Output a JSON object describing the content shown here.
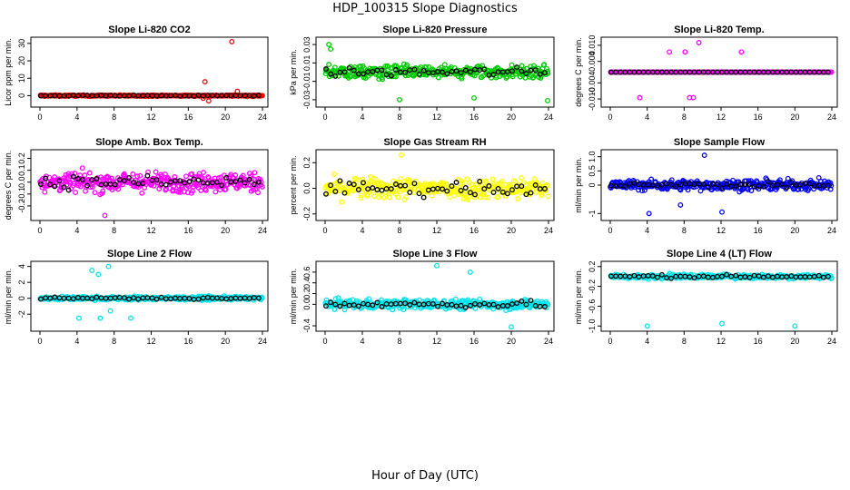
{
  "figure": {
    "title": "HDP_100315  Slope Diagnostics",
    "xlabel": "Hour of Day (UTC)"
  },
  "chart_data": [
    {
      "type": "scatter",
      "title": "Slope Li-820 CO2",
      "ylabel": "Licor ppm per min.",
      "color": "#ff0000",
      "xlim": [
        0,
        24
      ],
      "ylim": [
        -5,
        32
      ],
      "xticks": [
        "0",
        "4",
        "8",
        "12",
        "16",
        "20",
        "24"
      ],
      "yticks": [
        {
          "v": 0,
          "t": "0"
        },
        {
          "v": 10,
          "t": "10"
        },
        {
          "v": 20,
          "t": "20"
        },
        {
          "v": 30,
          "t": "30"
        }
      ],
      "spread": 0.4,
      "extremes": [
        [
          20.7,
          31
        ],
        [
          17.8,
          8
        ],
        [
          21.3,
          2.5
        ],
        [
          18.2,
          -3
        ],
        [
          17.6,
          -1.5
        ]
      ]
    },
    {
      "type": "scatter",
      "title": "Slope Li-820 Pressure",
      "ylabel": "kPa per min.",
      "color": "#00cc00",
      "xlim": [
        0,
        24
      ],
      "ylim": [
        -0.035,
        0.035
      ],
      "xticks": [
        "0",
        "4",
        "8",
        "12",
        "16",
        "20",
        "24"
      ],
      "yticks": [
        {
          "v": -0.03,
          "t": "-0.03"
        },
        {
          "v": -0.01,
          "t": "-0.01"
        },
        {
          "v": 0.01,
          "t": "0.01"
        },
        {
          "v": 0.03,
          "t": "0.03"
        }
      ],
      "spread": 0.008,
      "extremes": [
        [
          0.4,
          0.03
        ],
        [
          0.6,
          0.025
        ],
        [
          8,
          -0.03
        ],
        [
          16,
          -0.028
        ],
        [
          23.9,
          -0.031
        ]
      ]
    },
    {
      "type": "scatter",
      "title": "Slope Li-820 Temp.",
      "ylabel": "degrees C per min.",
      "color": "#ff00ff",
      "xlim": [
        0,
        24
      ],
      "ylim": [
        -0.012,
        0.012
      ],
      "xticks": [
        "0",
        "4",
        "8",
        "12",
        "16",
        "20",
        "24"
      ],
      "yticks": [
        {
          "v": -0.01,
          "t": "-0.010"
        },
        {
          "v": -0.004,
          "t": "-0.004"
        },
        {
          "v": 0.004,
          "t": "0.004"
        },
        {
          "v": 0.01,
          "t": "0.010"
        }
      ],
      "spread": 0,
      "extremes": [
        [
          9.6,
          0.011
        ],
        [
          6.4,
          0.0075
        ],
        [
          8.1,
          0.0075
        ],
        [
          14.2,
          0.0075
        ],
        [
          3.2,
          -0.0095
        ],
        [
          8.6,
          -0.0095
        ],
        [
          9.0,
          -0.0095
        ]
      ]
    },
    {
      "type": "scatter",
      "title": "Slope Amb. Box Temp.",
      "ylabel": "degrees C per min.",
      "color": "#ff00ff",
      "xlim": [
        0,
        24
      ],
      "ylim": [
        -0.3,
        0.25
      ],
      "xticks": [
        "0",
        "4",
        "8",
        "12",
        "16",
        "20",
        "24"
      ],
      "yticks": [
        {
          "v": -0.2,
          "t": "-0.2"
        },
        {
          "v": -0.1,
          "t": "-0.1"
        },
        {
          "v": 0,
          "t": "0.0"
        },
        {
          "v": 0.1,
          "t": "0.1"
        },
        {
          "v": 0.2,
          "t": "0.2"
        }
      ],
      "spread": 0.09,
      "extremes": [
        [
          7.0,
          -0.28
        ]
      ]
    },
    {
      "type": "scatter",
      "title": "Slope Gas Stream RH",
      "ylabel": "percent per min.",
      "color": "#ffff00",
      "xlim": [
        0,
        24
      ],
      "ylim": [
        -0.23,
        0.28
      ],
      "xticks": [
        "0",
        "4",
        "8",
        "12",
        "16",
        "20",
        "24"
      ],
      "yticks": [
        {
          "v": -0.2,
          "t": "-0.2"
        },
        {
          "v": 0,
          "t": "0.0"
        },
        {
          "v": 0.2,
          "t": "0.2"
        }
      ],
      "spread": 0.09,
      "extremes": [
        [
          8.2,
          0.26
        ]
      ]
    },
    {
      "type": "scatter",
      "title": "Slope Sample Flow",
      "ylabel": "ml/min per min.",
      "color": "#0000ff",
      "xlim": [
        0,
        24
      ],
      "ylim": [
        -1.15,
        1.15
      ],
      "xticks": [
        "0",
        "4",
        "8",
        "12",
        "16",
        "20",
        "24"
      ],
      "yticks": [
        {
          "v": -1,
          "t": "-1"
        },
        {
          "v": 0,
          "t": "0"
        },
        {
          "v": 0.5,
          "t": "0.5"
        },
        {
          "v": 1,
          "t": "1.0"
        }
      ],
      "spread": 0.2,
      "extremes": [
        [
          10.2,
          1.05
        ],
        [
          4.2,
          -1.0
        ],
        [
          12.1,
          -0.95
        ],
        [
          7.6,
          -0.7
        ]
      ]
    },
    {
      "type": "scatter",
      "title": "Slope Line 2 Flow",
      "ylabel": "ml/min per min.",
      "color": "#00e5ee",
      "xlim": [
        0,
        24
      ],
      "ylim": [
        -3.8,
        4.3
      ],
      "xticks": [
        "0",
        "4",
        "8",
        "12",
        "16",
        "20",
        "24"
      ],
      "yticks": [
        {
          "v": -2,
          "t": "-2"
        },
        {
          "v": 0,
          "t": "0"
        },
        {
          "v": 2,
          "t": "2"
        },
        {
          "v": 4,
          "t": "4"
        }
      ],
      "spread": 0.25,
      "extremes": [
        [
          7.4,
          4.0
        ],
        [
          5.6,
          3.5
        ],
        [
          6.3,
          3.0
        ],
        [
          4.2,
          -2.5
        ],
        [
          6.5,
          -2.5
        ],
        [
          9.8,
          -2.5
        ],
        [
          7.6,
          -1.6
        ]
      ]
    },
    {
      "type": "scatter",
      "title": "Slope Line 3 Flow",
      "ylabel": "ml/min per min.",
      "color": "#00e5ee",
      "xlim": [
        0,
        24
      ],
      "ylim": [
        -0.45,
        0.75
      ],
      "xticks": [
        "0",
        "4",
        "8",
        "12",
        "16",
        "20",
        "24"
      ],
      "yticks": [
        {
          "v": -0.4,
          "t": "-0.4"
        },
        {
          "v": 0,
          "t": "0.0"
        },
        {
          "v": 0.2,
          "t": "0.2"
        },
        {
          "v": 0.4,
          "t": "0.4"
        },
        {
          "v": 0.6,
          "t": "0.6"
        }
      ],
      "spread": 0.1,
      "extremes": [
        [
          12.0,
          0.72
        ],
        [
          15.6,
          0.6
        ],
        [
          20,
          -0.42
        ]
      ]
    },
    {
      "type": "scatter",
      "title": "Slope Line 4 (LT) Flow",
      "ylabel": "ml/min per min.",
      "color": "#00e5ee",
      "xlim": [
        0,
        24
      ],
      "ylim": [
        -1.05,
        0.25
      ],
      "xticks": [
        "0",
        "4",
        "8",
        "12",
        "16",
        "20",
        "24"
      ],
      "yticks": [
        {
          "v": -1,
          "t": "-1.0"
        },
        {
          "v": -0.6,
          "t": "-0.6"
        },
        {
          "v": -0.2,
          "t": "-0.2"
        },
        {
          "v": 0.2,
          "t": "0.2"
        }
      ],
      "spread": 0.05,
      "extremes": [
        [
          4.0,
          -1.0
        ],
        [
          12.1,
          -0.95
        ],
        [
          20.0,
          -1.0
        ]
      ]
    }
  ]
}
